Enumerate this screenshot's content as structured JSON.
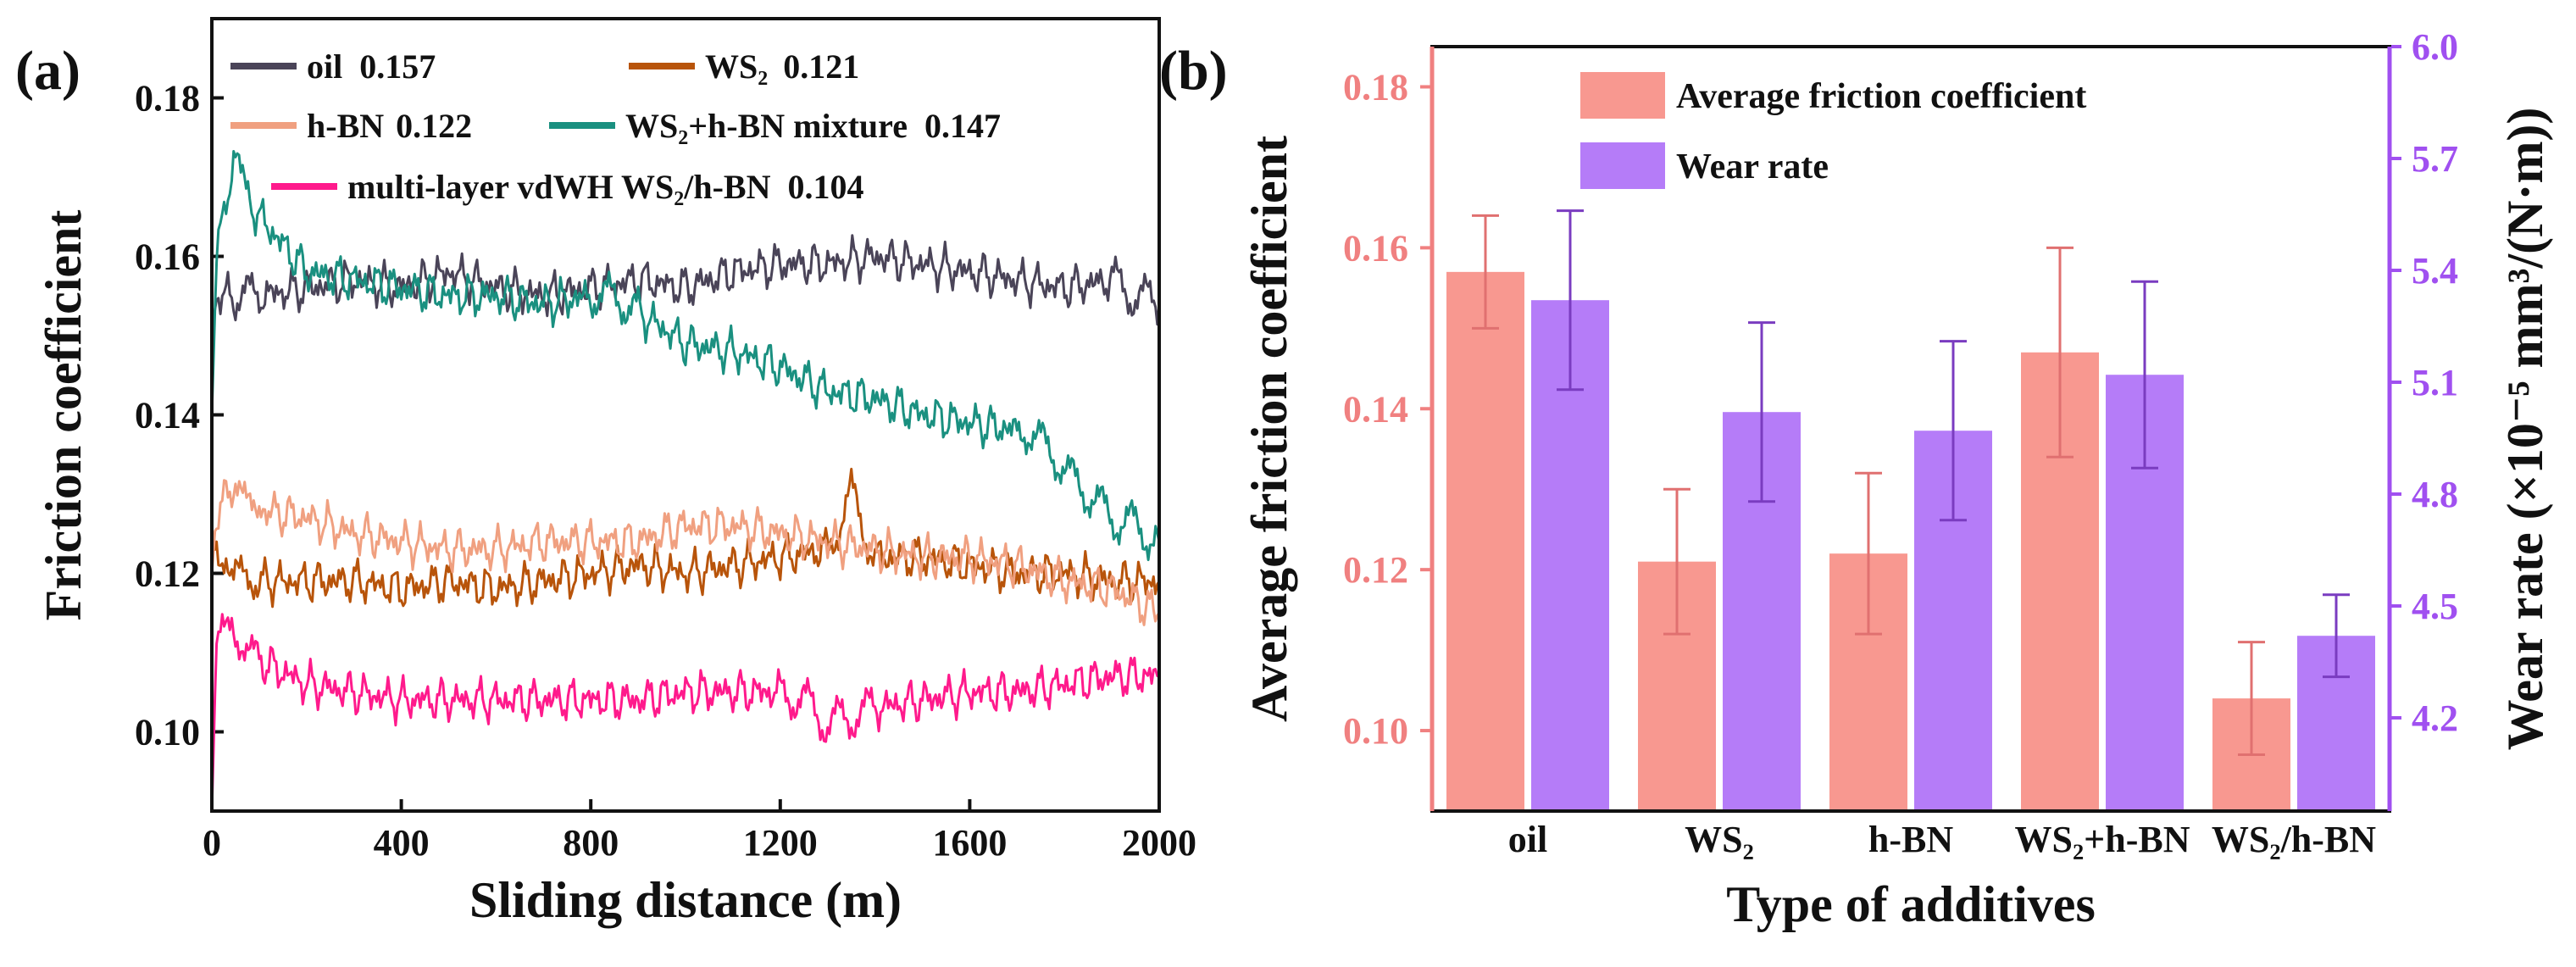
{
  "chart_data": [
    {
      "type": "line",
      "panel_label": "(a)",
      "xlabel": "Sliding distance (m)",
      "ylabel": "Friction coefficient",
      "xlim": [
        0,
        2000
      ],
      "ylim": [
        0.09,
        0.19
      ],
      "x_ticks": [
        "0",
        "400",
        "800",
        "1200",
        "1600",
        "2000"
      ],
      "y_ticks": [
        "0.10",
        "0.12",
        "0.14",
        "0.16",
        "0.18"
      ],
      "legend_position": "top",
      "series": [
        {
          "name": "oil",
          "value": "0.157",
          "color": "#4a4458",
          "points": [
            [
              0,
              0.15
            ],
            [
              10,
              0.155
            ],
            [
              50,
              0.155
            ],
            [
              100,
              0.155
            ],
            [
              200,
              0.156
            ],
            [
              300,
              0.157
            ],
            [
              400,
              0.156
            ],
            [
              500,
              0.158
            ],
            [
              600,
              0.156
            ],
            [
              700,
              0.155
            ],
            [
              800,
              0.156
            ],
            [
              900,
              0.157
            ],
            [
              1000,
              0.156
            ],
            [
              1100,
              0.158
            ],
            [
              1200,
              0.159
            ],
            [
              1300,
              0.159
            ],
            [
              1400,
              0.16
            ],
            [
              1500,
              0.159
            ],
            [
              1600,
              0.158
            ],
            [
              1700,
              0.157
            ],
            [
              1800,
              0.156
            ],
            [
              1900,
              0.157
            ],
            [
              1950,
              0.155
            ],
            [
              2000,
              0.154
            ]
          ]
        },
        {
          "name": "WS₂",
          "value": "0.121",
          "color": "#b8540a",
          "points": [
            [
              0,
              0.125
            ],
            [
              10,
              0.122
            ],
            [
              50,
              0.12
            ],
            [
              100,
              0.119
            ],
            [
              200,
              0.119
            ],
            [
              300,
              0.119
            ],
            [
              400,
              0.118
            ],
            [
              500,
              0.119
            ],
            [
              600,
              0.118
            ],
            [
              700,
              0.119
            ],
            [
              800,
              0.12
            ],
            [
              900,
              0.121
            ],
            [
              1000,
              0.12
            ],
            [
              1100,
              0.121
            ],
            [
              1200,
              0.122
            ],
            [
              1300,
              0.123
            ],
            [
              1350,
              0.13
            ],
            [
              1400,
              0.122
            ],
            [
              1500,
              0.122
            ],
            [
              1600,
              0.121
            ],
            [
              1700,
              0.12
            ],
            [
              1800,
              0.12
            ],
            [
              1900,
              0.119
            ],
            [
              2000,
              0.119
            ]
          ]
        },
        {
          "name": "h-BN",
          "value": "0.122",
          "color": "#f0a080",
          "points": [
            [
              0,
              0.12
            ],
            [
              10,
              0.128
            ],
            [
              50,
              0.131
            ],
            [
              100,
              0.128
            ],
            [
              200,
              0.127
            ],
            [
              300,
              0.125
            ],
            [
              400,
              0.124
            ],
            [
              500,
              0.123
            ],
            [
              600,
              0.123
            ],
            [
              700,
              0.124
            ],
            [
              800,
              0.124
            ],
            [
              900,
              0.124
            ],
            [
              1000,
              0.126
            ],
            [
              1100,
              0.126
            ],
            [
              1200,
              0.125
            ],
            [
              1300,
              0.124
            ],
            [
              1400,
              0.123
            ],
            [
              1500,
              0.122
            ],
            [
              1600,
              0.122
            ],
            [
              1700,
              0.121
            ],
            [
              1800,
              0.119
            ],
            [
              1900,
              0.118
            ],
            [
              2000,
              0.115
            ]
          ]
        },
        {
          "name": "WS₂+h-BN mixture",
          "value": "0.147",
          "color": "#1a9080",
          "points": [
            [
              0,
              0.14
            ],
            [
              10,
              0.16
            ],
            [
              30,
              0.168
            ],
            [
              50,
              0.171
            ],
            [
              80,
              0.167
            ],
            [
              100,
              0.165
            ],
            [
              200,
              0.158
            ],
            [
              300,
              0.157
            ],
            [
              400,
              0.156
            ],
            [
              500,
              0.155
            ],
            [
              600,
              0.155
            ],
            [
              700,
              0.154
            ],
            [
              800,
              0.155
            ],
            [
              850,
              0.155
            ],
            [
              900,
              0.153
            ],
            [
              1000,
              0.149
            ],
            [
              1100,
              0.148
            ],
            [
              1200,
              0.146
            ],
            [
              1300,
              0.143
            ],
            [
              1400,
              0.142
            ],
            [
              1500,
              0.14
            ],
            [
              1600,
              0.139
            ],
            [
              1700,
              0.138
            ],
            [
              1750,
              0.137
            ],
            [
              1800,
              0.133
            ],
            [
              1850,
              0.13
            ],
            [
              1900,
              0.127
            ],
            [
              1950,
              0.126
            ],
            [
              2000,
              0.124
            ]
          ]
        },
        {
          "name": "multi-layer vdWH WS₂/h-BN",
          "value": "0.104",
          "color": "#ff1a8c",
          "points": [
            [
              0,
              0.09
            ],
            [
              10,
              0.112
            ],
            [
              30,
              0.114
            ],
            [
              50,
              0.112
            ],
            [
              100,
              0.109
            ],
            [
              200,
              0.106
            ],
            [
              300,
              0.105
            ],
            [
              400,
              0.104
            ],
            [
              500,
              0.104
            ],
            [
              600,
              0.104
            ],
            [
              700,
              0.104
            ],
            [
              800,
              0.104
            ],
            [
              900,
              0.104
            ],
            [
              1000,
              0.105
            ],
            [
              1100,
              0.105
            ],
            [
              1200,
              0.105
            ],
            [
              1250,
              0.104
            ],
            [
              1300,
              0.101
            ],
            [
              1350,
              0.102
            ],
            [
              1400,
              0.103
            ],
            [
              1500,
              0.104
            ],
            [
              1600,
              0.105
            ],
            [
              1700,
              0.105
            ],
            [
              1800,
              0.106
            ],
            [
              1900,
              0.107
            ],
            [
              2000,
              0.107
            ]
          ]
        }
      ]
    },
    {
      "type": "bar",
      "panel_label": "(b)",
      "xlabel": "Type of additives",
      "ylabel_left": "Average friction coefficient",
      "ylabel_right": "Wear rate (×10⁻⁵ mm³/(N·m))",
      "categories": [
        "oil",
        "WS₂",
        "h-BN",
        "WS₂+h-BN",
        "WS₂/h-BN"
      ],
      "ylim_left": [
        0.09,
        0.185
      ],
      "ylim_right": [
        3.95,
        6.0
      ],
      "y_ticks_left": [
        "0.10",
        "0.12",
        "0.14",
        "0.16",
        "0.18"
      ],
      "y_ticks_right": [
        "4.2",
        "4.5",
        "4.8",
        "5.1",
        "5.4",
        "5.7",
        "6.0"
      ],
      "legend_position": "top",
      "series": [
        {
          "name": "Average friction coefficient",
          "axis": "left",
          "color": "#f89890",
          "values": [
            0.157,
            0.121,
            0.122,
            0.147,
            0.104
          ],
          "errors": [
            0.007,
            0.009,
            0.01,
            0.013,
            0.007
          ]
        },
        {
          "name": "Wear rate",
          "axis": "right",
          "color": "#b57cf8",
          "values": [
            5.32,
            5.02,
            4.97,
            5.12,
            4.42
          ],
          "errors": [
            0.24,
            0.24,
            0.24,
            0.25,
            0.11
          ]
        }
      ],
      "colors": {
        "left_axis": "#f08080",
        "right_axis": "#a050f0"
      }
    }
  ]
}
